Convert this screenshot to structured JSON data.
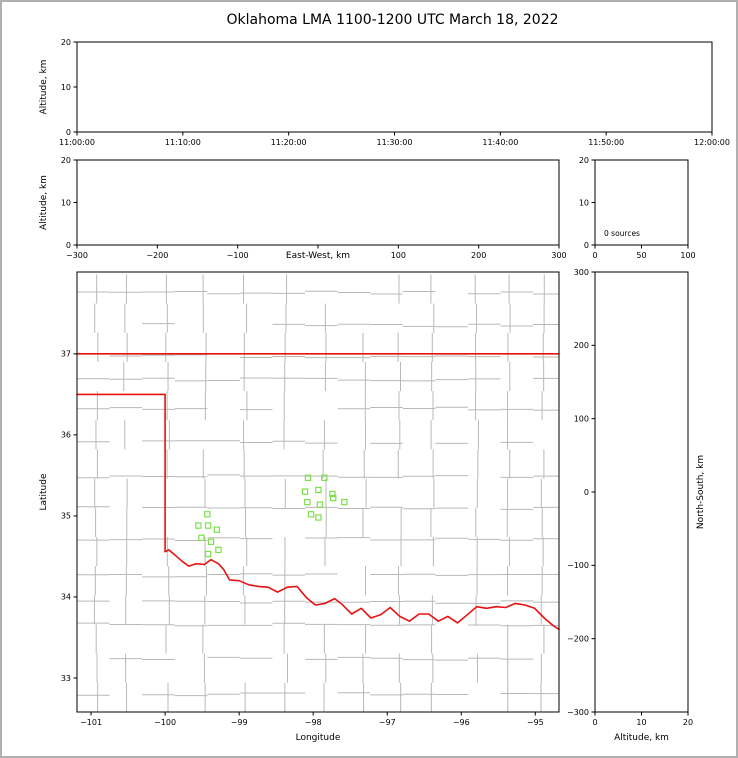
{
  "title": "Oklahoma LMA 1100-1200 UTC March 18, 2022",
  "colors": {
    "county": "#b8b8b8",
    "border": "#e81212",
    "marker": "#7ce04a"
  },
  "chart_data": [
    {
      "name": "time-altitude",
      "type": "scatter",
      "ylabel": "Altitude, km",
      "x_ticks": [
        "11:00:00",
        "11:10:00",
        "11:20:00",
        "11:30:00",
        "11:40:00",
        "11:50:00",
        "12:00:00"
      ],
      "ylim": [
        0,
        20
      ],
      "y_ticks": [
        0,
        10,
        20
      ],
      "points": []
    },
    {
      "name": "eastwest-altitude",
      "type": "scatter",
      "xlabel": "East-West, km",
      "ylabel": "Altitude, km",
      "xlim": [
        -300,
        300
      ],
      "x_ticks": [
        -300,
        -200,
        -100,
        0,
        100,
        200,
        300
      ],
      "ylim": [
        0,
        20
      ],
      "y_ticks": [
        0,
        10,
        20
      ],
      "points": []
    },
    {
      "name": "source-count",
      "type": "line",
      "annotation": "0 sources",
      "xlim": [
        0,
        100
      ],
      "x_ticks": [
        0,
        50,
        100
      ],
      "ylim": [
        0,
        20
      ],
      "y_ticks": [
        0,
        10,
        20
      ],
      "points": []
    },
    {
      "name": "plan-view",
      "type": "scatter",
      "xlabel": "Longitude",
      "ylabel": "Latitude",
      "xlim": [
        -101.19,
        -94.68
      ],
      "x_ticks": [
        -101,
        -100,
        -99,
        -98,
        -97,
        -96,
        -95
      ],
      "ylim": [
        32.58,
        38.01
      ],
      "y_ticks": [
        33,
        34,
        35,
        36,
        37
      ],
      "points": [
        [
          -98.07,
          35.47
        ],
        [
          -97.85,
          35.47
        ],
        [
          -98.11,
          35.3
        ],
        [
          -97.93,
          35.32
        ],
        [
          -97.74,
          35.27
        ],
        [
          -98.08,
          35.17
        ],
        [
          -97.91,
          35.14
        ],
        [
          -97.73,
          35.22
        ],
        [
          -97.58,
          35.17
        ],
        [
          -98.03,
          35.02
        ],
        [
          -97.93,
          34.98
        ],
        [
          -99.43,
          35.02
        ],
        [
          -99.55,
          34.88
        ],
        [
          -99.42,
          34.88
        ],
        [
          -99.3,
          34.83
        ],
        [
          -99.51,
          34.73
        ],
        [
          -99.38,
          34.68
        ],
        [
          -99.28,
          34.58
        ],
        [
          -99.42,
          34.53
        ]
      ],
      "state_border": {
        "north": [
          [
            -101.19,
            37.0
          ],
          [
            -94.68,
            37.0
          ]
        ],
        "panhandle": [
          [
            -101.19,
            36.5
          ],
          [
            -100.0,
            36.5
          ],
          [
            -100.0,
            34.56
          ]
        ],
        "red_river": [
          [
            -100.0,
            34.56
          ],
          [
            -99.95,
            34.58
          ],
          [
            -99.87,
            34.52
          ],
          [
            -99.77,
            34.44
          ],
          [
            -99.68,
            34.38
          ],
          [
            -99.58,
            34.41
          ],
          [
            -99.47,
            34.4
          ],
          [
            -99.38,
            34.46
          ],
          [
            -99.28,
            34.41
          ],
          [
            -99.21,
            34.34
          ],
          [
            -99.13,
            34.21
          ],
          [
            -99.0,
            34.2
          ],
          [
            -98.87,
            34.15
          ],
          [
            -98.74,
            34.13
          ],
          [
            -98.61,
            34.12
          ],
          [
            -98.48,
            34.06
          ],
          [
            -98.35,
            34.12
          ],
          [
            -98.22,
            34.13
          ],
          [
            -98.09,
            33.99
          ],
          [
            -97.97,
            33.9
          ],
          [
            -97.84,
            33.92
          ],
          [
            -97.71,
            33.98
          ],
          [
            -97.6,
            33.9
          ],
          [
            -97.48,
            33.79
          ],
          [
            -97.35,
            33.86
          ],
          [
            -97.22,
            33.74
          ],
          [
            -97.09,
            33.78
          ],
          [
            -96.96,
            33.87
          ],
          [
            -96.83,
            33.76
          ],
          [
            -96.7,
            33.7
          ],
          [
            -96.57,
            33.79
          ],
          [
            -96.44,
            33.79
          ],
          [
            -96.31,
            33.7
          ],
          [
            -96.18,
            33.76
          ],
          [
            -96.05,
            33.68
          ],
          [
            -95.92,
            33.78
          ],
          [
            -95.79,
            33.88
          ],
          [
            -95.66,
            33.86
          ],
          [
            -95.53,
            33.88
          ],
          [
            -95.4,
            33.87
          ],
          [
            -95.27,
            33.92
          ],
          [
            -95.14,
            33.9
          ],
          [
            -95.01,
            33.86
          ],
          [
            -94.88,
            33.74
          ],
          [
            -94.75,
            33.64
          ],
          [
            -94.68,
            33.6
          ]
        ]
      }
    },
    {
      "name": "northsouth-altitude",
      "type": "scatter",
      "xlabel": "Altitude, km",
      "ylabel": "North-South, km",
      "xlim": [
        0,
        20
      ],
      "x_ticks": [
        0,
        10,
        20
      ],
      "ylim": [
        -300,
        300
      ],
      "y_ticks": [
        -300,
        -200,
        -100,
        0,
        100,
        200,
        300
      ],
      "points": []
    }
  ]
}
